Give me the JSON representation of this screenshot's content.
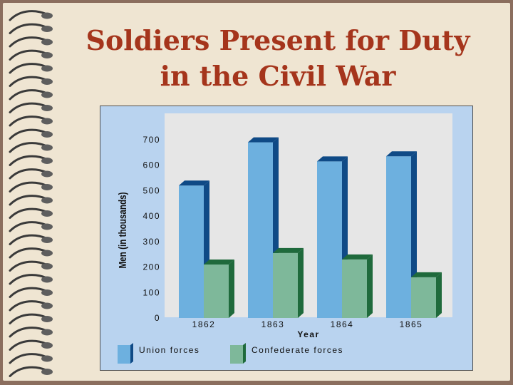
{
  "slide": {
    "title_line1": "Soldiers Present for Duty",
    "title_line2": "in the Civil War"
  },
  "colors": {
    "title": "#a5351c",
    "union_front": "#6db0df",
    "union_side": "#0f4a86",
    "confederate_front": "#7eb89a",
    "confederate_side": "#1f6a3c",
    "plot_background": "#e6e6e6",
    "frame_background": "#b9d3ef"
  },
  "chart_data": {
    "type": "bar",
    "categories": [
      "1862",
      "1863",
      "1864",
      "1865"
    ],
    "series": [
      {
        "name": "Union forces",
        "values": [
          520,
          690,
          615,
          635
        ]
      },
      {
        "name": "Confederate forces",
        "values": [
          210,
          255,
          230,
          160
        ]
      }
    ],
    "xlabel": "Year",
    "ylabel": "Men (in thousands)",
    "ylim": [
      0,
      700
    ],
    "yticks": [
      0,
      100,
      200,
      300,
      400,
      500,
      600,
      700
    ],
    "legend_position": "bottom",
    "grid": false
  }
}
